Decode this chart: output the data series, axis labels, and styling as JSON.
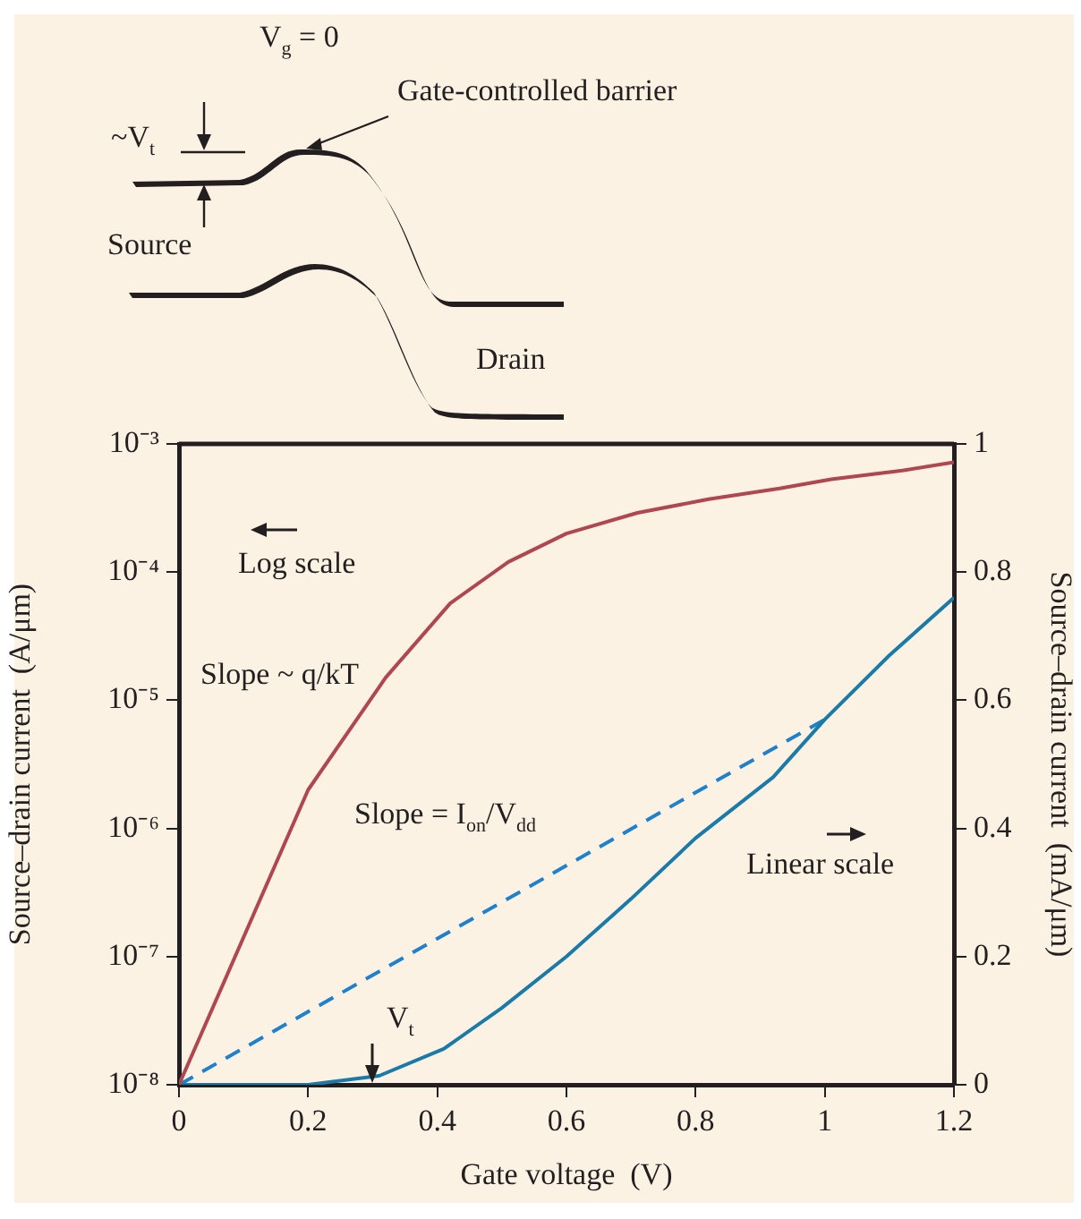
{
  "chart_data": {
    "type": "line",
    "xlabel": "Gate voltage  (V)",
    "ylabel": "Source–drain current  (A/μm)",
    "y2label": "Source–drain current  (mA/μm)",
    "xlim": [
      0,
      1.2
    ],
    "xticks": [
      0,
      0.2,
      0.4,
      0.6,
      0.8,
      1,
      1.2
    ],
    "ylim": [
      1e-08,
      0.001
    ],
    "yticks": [
      {
        "value": 1e-08,
        "label": "10⁻⁸"
      },
      {
        "value": 1e-07,
        "label": "10⁻⁷"
      },
      {
        "value": 1e-06,
        "label": "10⁻⁶"
      },
      {
        "value": 1e-05,
        "label": "10⁻⁵"
      },
      {
        "value": 0.0001,
        "label": "10⁻⁴"
      },
      {
        "value": 0.001,
        "label": "10⁻³"
      }
    ],
    "y2lim": [
      0,
      1
    ],
    "y2ticks": [
      0,
      0.2,
      0.4,
      0.6,
      0.8,
      1
    ],
    "log": "y",
    "grid": false,
    "legend": false,
    "marker": "none",
    "series": [
      {
        "axis": "y",
        "color": "#b0464f",
        "line_style": "solid",
        "x": [
          0,
          0.2,
          0.32,
          0.42,
          0.51,
          0.6,
          0.71,
          0.82,
          0.93,
          1.01,
          1.12,
          1.2
        ],
        "values": [
          1e-08,
          2e-06,
          1.5e-05,
          5.7e-05,
          0.00012,
          0.0002,
          0.00029,
          0.00037,
          0.00045,
          0.00053,
          0.00062,
          0.00072
        ]
      },
      {
        "axis": "y2",
        "color": "#1a7aa8",
        "line_style": "solid",
        "x": [
          0,
          0.2,
          0.31,
          0.41,
          0.5,
          0.6,
          0.7,
          0.8,
          0.92,
          1.0,
          1.1,
          1.2
        ],
        "values": [
          0,
          0,
          0.014,
          0.056,
          0.12,
          0.2,
          0.29,
          0.385,
          0.48,
          0.57,
          0.67,
          0.76
        ]
      },
      {
        "axis": "y2",
        "color": "#1f80cc",
        "line_style": "dashed",
        "x": [
          0,
          1.0
        ],
        "values": [
          0,
          0.57
        ]
      }
    ],
    "annotations": [
      "V$_{g}$ = 0",
      "~V$_{t}$",
      "Gate-controlled barrier",
      "Source",
      "Drain",
      "Log scale",
      "Slope ~ q/kT",
      "Slope = I$_{on}$/V$_{dd}$",
      "Linear scale",
      "V$_{t}$"
    ]
  }
}
